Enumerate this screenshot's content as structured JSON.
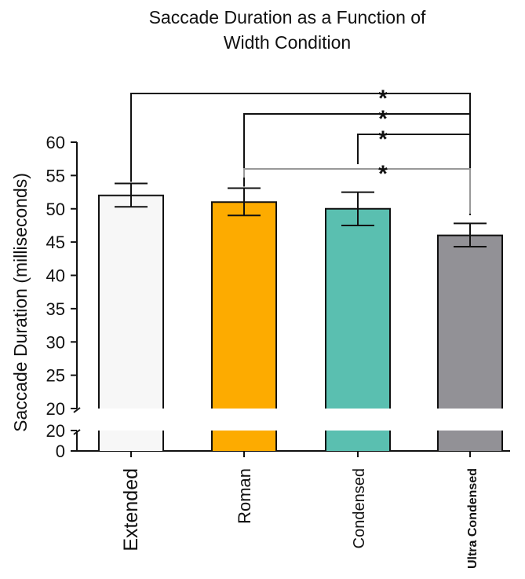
{
  "chart_data": {
    "type": "bar",
    "title_lines": [
      "Saccade Duration as a Function of",
      "Width Condition"
    ],
    "ylabel": "Saccade Duration (milliseconds)",
    "xlabel": "",
    "categories": [
      "Extended",
      "Roman",
      "Condensed",
      "Ultra Condensed"
    ],
    "values": [
      52,
      51,
      50,
      46
    ],
    "error_low": [
      50.3,
      49,
      47.5,
      44.3
    ],
    "error_high": [
      53.8,
      53.1,
      52.5,
      47.8
    ],
    "colors": [
      "#f7f7f7",
      "#fdab00",
      "#5abfb0",
      "#929196"
    ],
    "axis_break": {
      "lower_ticks": [
        0,
        20
      ],
      "upper_range": [
        20,
        60
      ]
    },
    "upper_ticks": [
      20,
      25,
      30,
      35,
      40,
      45,
      50,
      55,
      60
    ],
    "lower_tick_labels": [
      "0",
      "20"
    ],
    "upper_tick_labels": [
      "20",
      "25",
      "30",
      "35",
      "40",
      "45",
      "50",
      "55",
      "60"
    ],
    "significance": [
      {
        "from": "Extended",
        "to": "Ultra Condensed",
        "label": "*",
        "color": "#111111"
      },
      {
        "from": "Roman",
        "to": "Ultra Condensed",
        "label": "*",
        "color": "#111111"
      },
      {
        "from": "Condensed",
        "to": "Ultra Condensed",
        "label": "*",
        "color": "#111111"
      },
      {
        "from": "Roman",
        "to": "Ultra Condensed",
        "label": "*",
        "color": "#999999"
      }
    ],
    "grid": false,
    "legend": "none"
  }
}
